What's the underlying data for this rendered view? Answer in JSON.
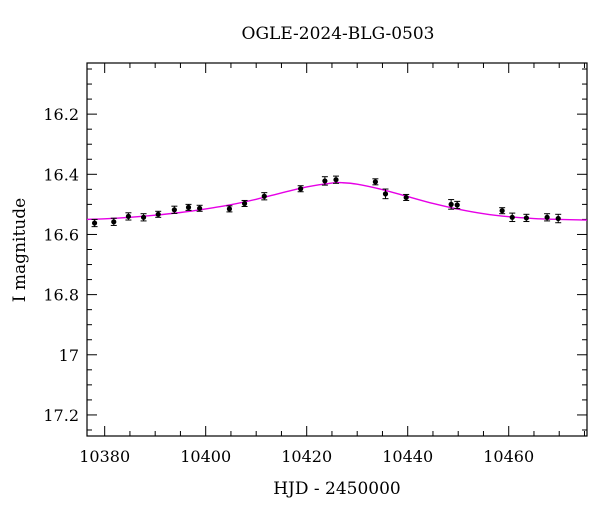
{
  "chart_data": {
    "type": "scatter",
    "title": "OGLE-2024-BLG-0503",
    "xlabel": "HJD - 2450000",
    "ylabel": "I magnitude",
    "xlim": [
      10376.5,
      10475.5
    ],
    "ylim": [
      17.27,
      16.03
    ],
    "y_inverted": true,
    "xticks": [
      10380,
      10400,
      10420,
      10440,
      10460
    ],
    "yticks": [
      16.2,
      16.4,
      16.6,
      16.8,
      17,
      17.2
    ],
    "xtick_labels": [
      "10380",
      "10400",
      "10420",
      "10440",
      "10460"
    ],
    "ytick_labels": [
      "16.2",
      "16.4",
      "16.6",
      "16.8",
      "17",
      "17.2"
    ],
    "series": [
      {
        "kind": "points_with_errorbars",
        "color": "#000000",
        "points": [
          {
            "x": 10378.0,
            "y": 16.562,
            "err": 0.012
          },
          {
            "x": 10381.8,
            "y": 16.558,
            "err": 0.012
          },
          {
            "x": 10384.7,
            "y": 16.54,
            "err": 0.012
          },
          {
            "x": 10387.7,
            "y": 16.543,
            "err": 0.012
          },
          {
            "x": 10390.6,
            "y": 16.533,
            "err": 0.01
          },
          {
            "x": 10393.8,
            "y": 16.518,
            "err": 0.012
          },
          {
            "x": 10396.6,
            "y": 16.51,
            "err": 0.01
          },
          {
            "x": 10398.8,
            "y": 16.513,
            "err": 0.01
          },
          {
            "x": 10404.7,
            "y": 16.515,
            "err": 0.01
          },
          {
            "x": 10407.7,
            "y": 16.497,
            "err": 0.01
          },
          {
            "x": 10411.6,
            "y": 16.473,
            "err": 0.012
          },
          {
            "x": 10418.8,
            "y": 16.448,
            "err": 0.01
          },
          {
            "x": 10423.6,
            "y": 16.422,
            "err": 0.014
          },
          {
            "x": 10425.8,
            "y": 16.418,
            "err": 0.012
          },
          {
            "x": 10433.6,
            "y": 16.425,
            "err": 0.01
          },
          {
            "x": 10435.6,
            "y": 16.465,
            "err": 0.016
          },
          {
            "x": 10439.7,
            "y": 16.477,
            "err": 0.01
          },
          {
            "x": 10448.6,
            "y": 16.5,
            "err": 0.016
          },
          {
            "x": 10449.8,
            "y": 16.502,
            "err": 0.012
          },
          {
            "x": 10458.7,
            "y": 16.521,
            "err": 0.01
          },
          {
            "x": 10460.7,
            "y": 16.543,
            "err": 0.014
          },
          {
            "x": 10463.5,
            "y": 16.545,
            "err": 0.012
          },
          {
            "x": 10467.6,
            "y": 16.543,
            "err": 0.012
          },
          {
            "x": 10469.8,
            "y": 16.547,
            "err": 0.014
          }
        ]
      },
      {
        "kind": "model_curve",
        "color": "#e600e6",
        "x": [
          10376.5,
          10380,
          10385,
          10390,
          10395,
          10400,
          10405,
          10410,
          10415,
          10420,
          10425,
          10427,
          10430,
          10435,
          10440,
          10445,
          10450,
          10455,
          10460,
          10465,
          10470,
          10475.5
        ],
        "y": [
          16.55,
          16.548,
          16.543,
          16.536,
          16.527,
          16.515,
          16.501,
          16.483,
          16.462,
          16.442,
          16.429,
          16.428,
          16.433,
          16.451,
          16.474,
          16.497,
          16.516,
          16.531,
          16.541,
          16.547,
          16.55,
          16.552
        ]
      }
    ]
  }
}
